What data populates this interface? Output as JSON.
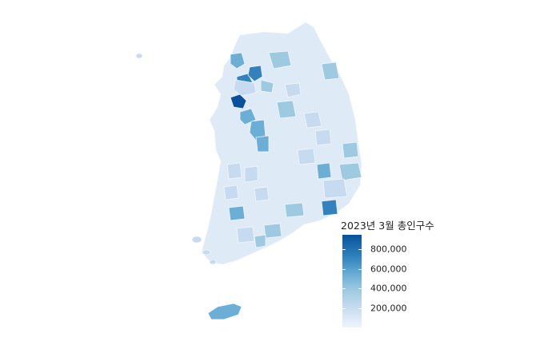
{
  "legend": {
    "title": "2023년 3월 총인구수",
    "scale": "sequential-blues",
    "colors": {
      "low": "#eef5fc",
      "high": "#08519c"
    },
    "min": 0,
    "max": 950000,
    "breaks": [
      {
        "value": 200000,
        "label": "200,000"
      },
      {
        "value": 400000,
        "label": "400,000"
      },
      {
        "value": 600000,
        "label": "600,000"
      },
      {
        "value": 800000,
        "label": "800,000"
      }
    ]
  },
  "map": {
    "region": "South Korea",
    "unit": "si-gun-gu",
    "palette": {
      "mainland": "#dfeaf7",
      "border": "#f2f6fb",
      "light": "#c6dbef",
      "medium": "#9ecae1",
      "strong": "#6baed6",
      "darker": "#3182bd",
      "darkest": "#08519c"
    }
  }
}
